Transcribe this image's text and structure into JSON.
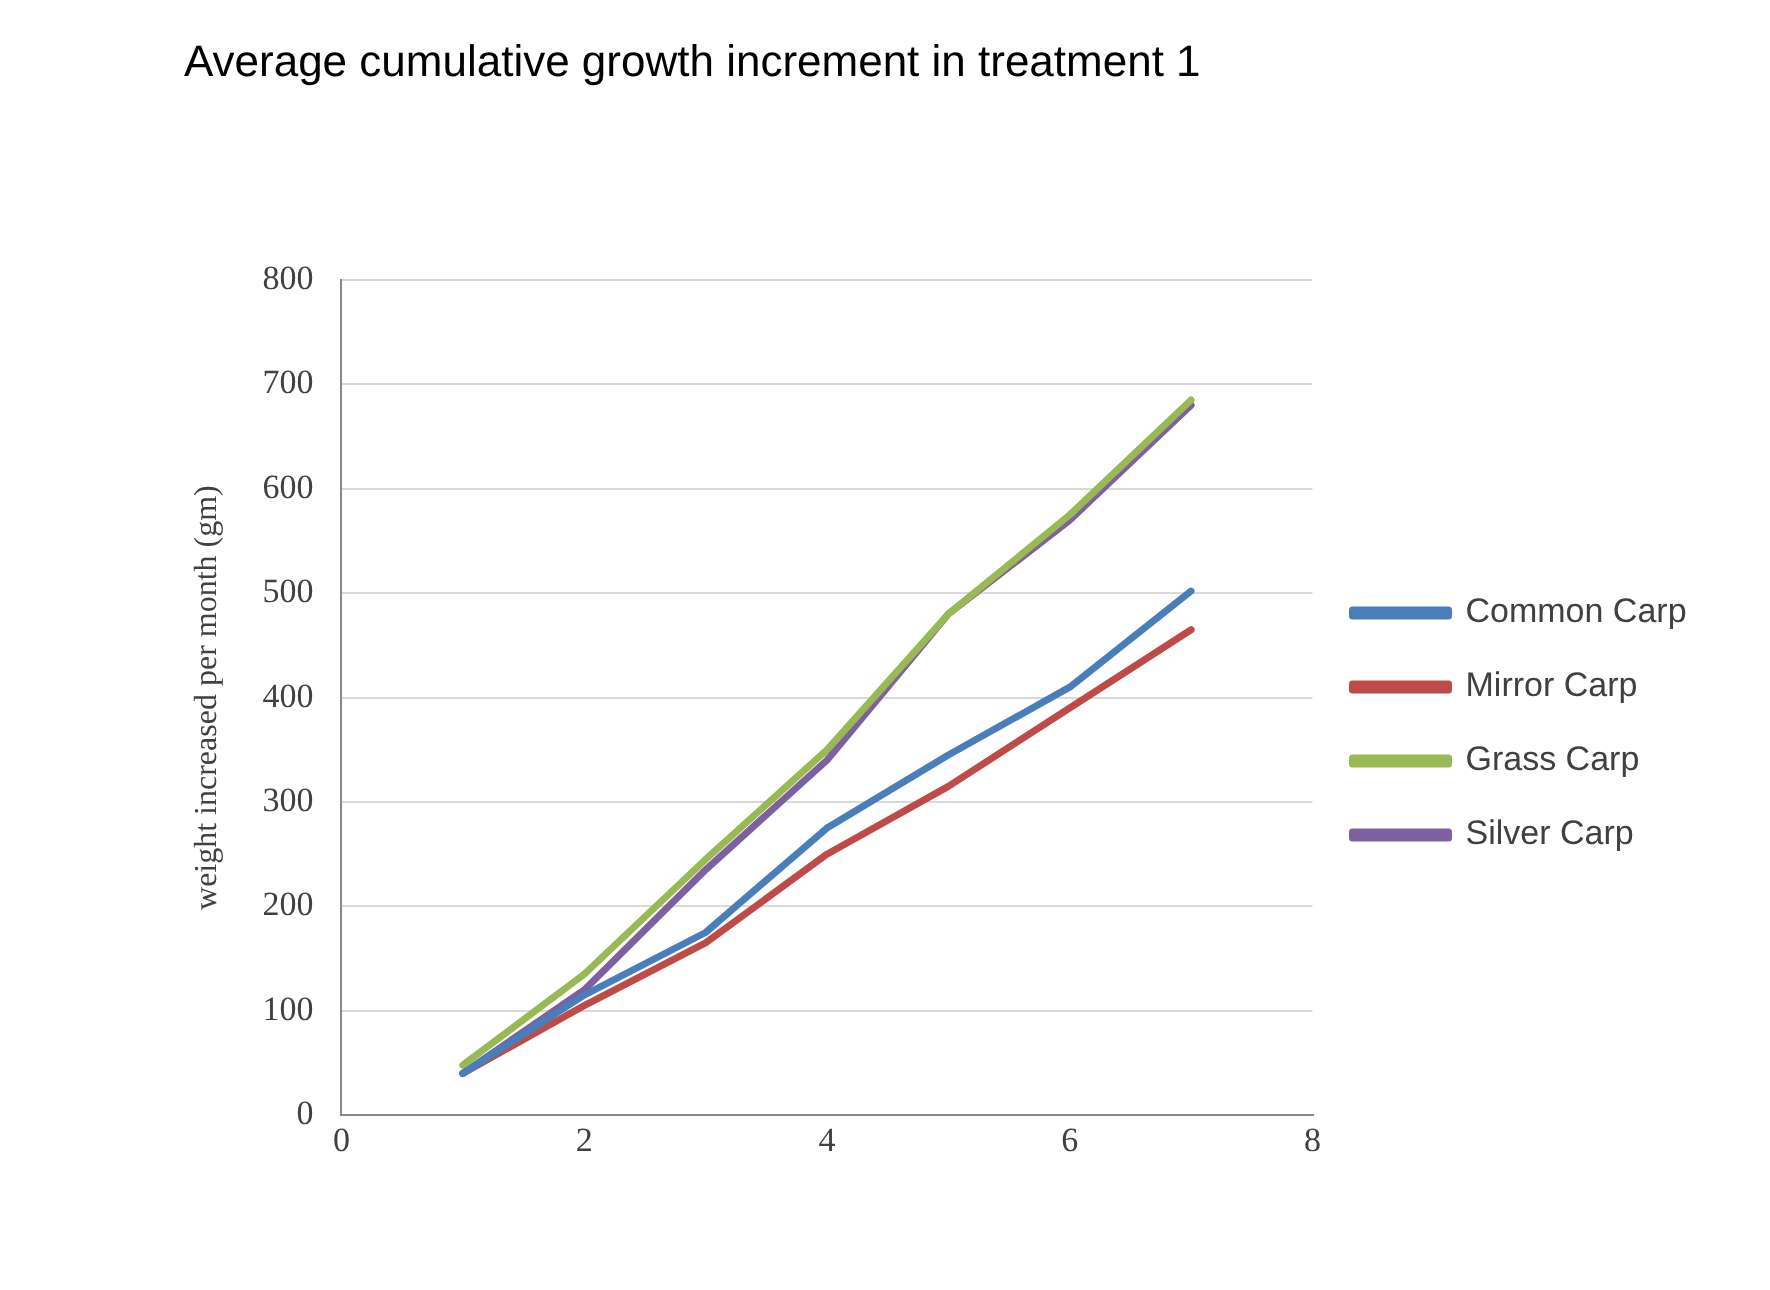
{
  "chart_data": {
    "type": "line",
    "title": "Average cumulative growth increment in treatment 1",
    "ylabel": "weight increased per month (gm)",
    "x": [
      1,
      2,
      3,
      4,
      5,
      6,
      7
    ],
    "series": [
      {
        "name": "Common Carp",
        "color": "#4a7ebb",
        "values": [
          40,
          115,
          175,
          275,
          345,
          410,
          502
        ]
      },
      {
        "name": "Mirror Carp",
        "color": "#be4b48",
        "values": [
          40,
          105,
          165,
          250,
          315,
          390,
          465
        ]
      },
      {
        "name": "Grass Carp",
        "color": "#98b954",
        "values": [
          48,
          135,
          245,
          350,
          480,
          575,
          685
        ]
      },
      {
        "name": "Silver Carp",
        "color": "#7d60a0",
        "values": [
          40,
          120,
          235,
          340,
          480,
          570,
          680
        ]
      }
    ],
    "xlim": [
      0,
      8
    ],
    "xticks": [
      0,
      2,
      4,
      6,
      8
    ],
    "ylim": [
      0,
      800
    ],
    "yticks": [
      0,
      100,
      200,
      300,
      400,
      500,
      600,
      700,
      800
    ],
    "grid": "y",
    "legend": "right",
    "marker": "none",
    "line_style": "solid"
  }
}
